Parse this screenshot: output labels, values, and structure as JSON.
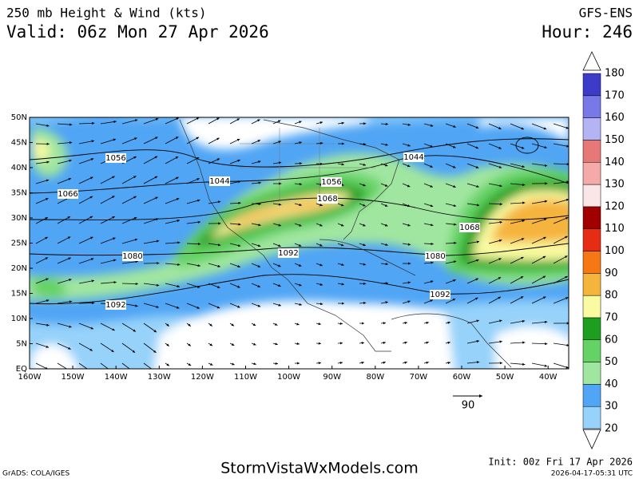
{
  "header": {
    "title": "250 mb Height & Wind (kts)",
    "valid": "Valid: 06z Mon 27 Apr 2026",
    "model": "GFS-ENS",
    "hour": "Hour: 246"
  },
  "map": {
    "lat_labels": [
      "50N",
      "45N",
      "40N",
      "35N",
      "30N",
      "25N",
      "20N",
      "15N",
      "10N",
      "5N",
      "EQ"
    ],
    "lon_labels": [
      "160W",
      "150W",
      "140W",
      "130W",
      "120W",
      "110W",
      "100W",
      "90W",
      "80W",
      "70W",
      "60W",
      "50W",
      "40W"
    ],
    "contour_labels": [
      "1056",
      "1066",
      "1044",
      "1056",
      "1068",
      "1044",
      "1080",
      "1092",
      "1068",
      "1080",
      "1092",
      "1092"
    ],
    "wind_legend": "90"
  },
  "colorbar": {
    "levels": [
      20,
      30,
      40,
      50,
      60,
      70,
      80,
      90,
      100,
      110,
      120,
      130,
      140,
      150,
      160,
      170,
      180
    ],
    "colors": [
      "#96d2fa",
      "#50a5f5",
      "#a0e6a0",
      "#64d264",
      "#1e9e1e",
      "#fafaa0",
      "#f5b43c",
      "#f57814",
      "#e62d14",
      "#a00000",
      "#fae6e6",
      "#f5aaaa",
      "#e67878",
      "#b4b4f5",
      "#7878e6",
      "#3c3cc8"
    ]
  },
  "footer": {
    "credit": "GrADS: COLA/IGES",
    "site": "StormVistaWxModels.com",
    "init": "Init: 00z Fri 17 Apr 2026",
    "stamp": "2026-04-17-05:31 UTC"
  }
}
